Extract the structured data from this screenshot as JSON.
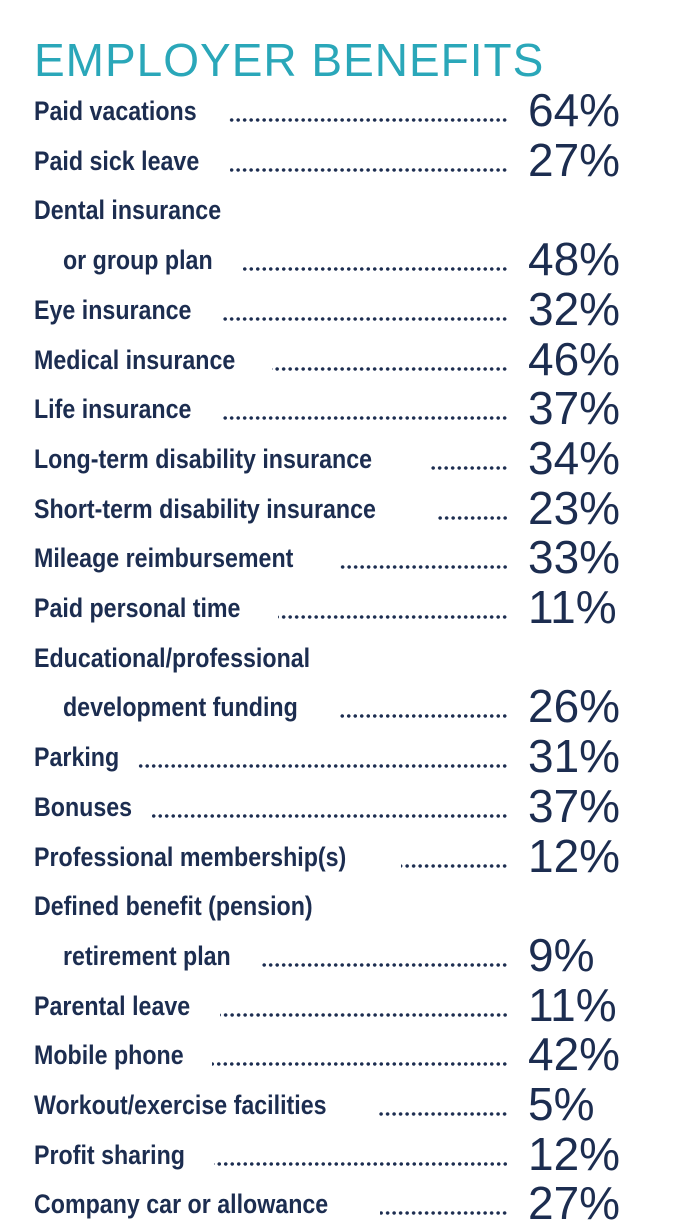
{
  "chart_data": {
    "type": "table",
    "title": "EMPLOYER BENEFITS",
    "rows": [
      {
        "label": [
          "Paid vacations"
        ],
        "value": "64%"
      },
      {
        "label": [
          "Paid sick leave"
        ],
        "value": "27%"
      },
      {
        "label": [
          "Dental insurance",
          "or group plan"
        ],
        "value": "48%"
      },
      {
        "label": [
          "Eye insurance"
        ],
        "value": "32%"
      },
      {
        "label": [
          "Medical insurance"
        ],
        "value": "46%"
      },
      {
        "label": [
          "Life insurance"
        ],
        "value": "37%"
      },
      {
        "label": [
          "Long-term disability insurance"
        ],
        "value": "34%"
      },
      {
        "label": [
          "Short-term disability insurance"
        ],
        "value": "23%"
      },
      {
        "label": [
          "Mileage reimbursement"
        ],
        "value": "33%"
      },
      {
        "label": [
          "Paid personal time"
        ],
        "value": "11%"
      },
      {
        "label": [
          "Educational/professional",
          "development funding"
        ],
        "value": "26%"
      },
      {
        "label": [
          "Parking"
        ],
        "value": "31%"
      },
      {
        "label": [
          "Bonuses"
        ],
        "value": "37%"
      },
      {
        "label": [
          "Professional membership(s)"
        ],
        "value": "12%"
      },
      {
        "label": [
          "Defined benefit (pension)",
          "retirement plan"
        ],
        "value": "9%"
      },
      {
        "label": [
          "Parental leave"
        ],
        "value": "11%"
      },
      {
        "label": [
          "Mobile phone"
        ],
        "value": "42%"
      },
      {
        "label": [
          "Workout/exercise facilities"
        ],
        "value": "5%"
      },
      {
        "label": [
          "Profit sharing"
        ],
        "value": "12%"
      },
      {
        "label": [
          "Company car or allowance"
        ],
        "value": "27%"
      }
    ]
  },
  "colors": {
    "title": "#2aa7b9",
    "text": "#1c2d50",
    "background": "#ffffff"
  }
}
